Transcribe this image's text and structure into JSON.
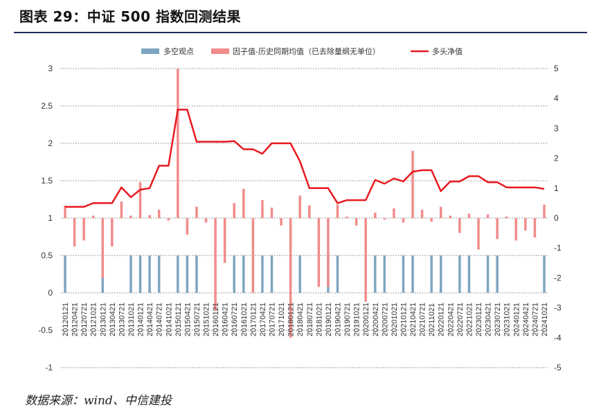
{
  "header": {
    "title": "图表 29：中证 500 指数回测结果"
  },
  "footer": {
    "source": "数据来源：wind、中信建投"
  },
  "chart_data": {
    "type": "bar",
    "title": "",
    "xlabel": "",
    "ylabel": "",
    "ylim_left": [
      -1,
      3
    ],
    "ylim_right": [
      -5,
      5
    ],
    "left_ticks": [
      "-1",
      "-0.5",
      "0",
      "0.5",
      "1",
      "1.5",
      "2",
      "2.5",
      "3"
    ],
    "right_ticks": [
      "-5",
      "-4",
      "-3",
      "-2",
      "-1",
      "0",
      "1",
      "2",
      "3",
      "4",
      "5"
    ],
    "grid": "horizontal dotted",
    "legend_position": "top-center",
    "colors": {
      "long_short_point": "#7ea6c0",
      "factor_minus_mean": "#f28b8b",
      "long_nav": "#e8181e"
    },
    "categories": [
      "20120121",
      "20120421",
      "20120721",
      "20121021",
      "20130121",
      "20130421",
      "20130721",
      "20131021",
      "20140121",
      "20140421",
      "20140721",
      "20141021",
      "20150121",
      "20150421",
      "20150721",
      "20151021",
      "20160121",
      "20160421",
      "20160721",
      "20161021",
      "20170121",
      "20170421",
      "20170721",
      "20171021",
      "20180121",
      "20180421",
      "20180721",
      "20181021",
      "20190121",
      "20190421",
      "20190721",
      "20191021",
      "20200121",
      "20200421",
      "20200721",
      "20201021",
      "20210121",
      "20210421",
      "20210721",
      "20211021",
      "20220121",
      "20220421",
      "20220721",
      "20221021",
      "20230121",
      "20230421",
      "20230721",
      "20231021",
      "20240121",
      "20240421",
      "20240721",
      "20241021"
    ],
    "series": [
      {
        "name": "多空观点",
        "axis": "left",
        "type": "bar",
        "values": [
          0.5,
          0,
          0,
          0,
          0.5,
          0,
          0,
          0.5,
          0.5,
          0.5,
          0.5,
          0,
          0.5,
          0.5,
          0.5,
          0,
          0,
          0,
          0.5,
          0.5,
          0,
          0.5,
          0.5,
          0,
          0.5,
          0.5,
          0,
          0,
          0.5,
          0.5,
          0,
          0,
          0.5,
          0.5,
          0.5,
          0,
          0.5,
          0.5,
          0,
          0.5,
          0.5,
          0,
          0.5,
          0.5,
          0,
          0.5,
          0.5,
          0,
          0,
          0,
          0,
          0.5
        ]
      },
      {
        "name": "因子值-历史同期均值（已去除量纲无单位）",
        "axis": "right",
        "type": "bar",
        "values": [
          0.42,
          -0.95,
          -0.75,
          0.08,
          -2.0,
          -0.95,
          0.55,
          0.08,
          1.2,
          0.1,
          0.28,
          -0.08,
          5.0,
          -0.55,
          0.38,
          -0.15,
          -3.1,
          -1.5,
          0.5,
          0.98,
          -2.5,
          0.6,
          0.35,
          -0.25,
          -4.0,
          0.75,
          0.42,
          -2.3,
          -2.3,
          0.45,
          0.05,
          -0.25,
          -2.8,
          0.18,
          -0.05,
          0.32,
          -0.15,
          2.25,
          0.28,
          -0.12,
          0.38,
          0.08,
          -0.5,
          0.15,
          -1.05,
          0.12,
          -0.7,
          0.05,
          -0.75,
          -0.42,
          -0.65,
          0.45
        ]
      },
      {
        "name": "多头净值",
        "axis": "left",
        "type": "line",
        "values": [
          1.15,
          1.15,
          1.15,
          1.2,
          1.2,
          1.2,
          1.41,
          1.28,
          1.38,
          1.4,
          1.7,
          1.7,
          2.45,
          2.45,
          2.02,
          2.02,
          2.02,
          2.02,
          2.03,
          1.92,
          1.92,
          1.86,
          2.0,
          2.0,
          2.0,
          1.76,
          1.4,
          1.4,
          1.4,
          1.2,
          1.24,
          1.24,
          1.24,
          1.51,
          1.46,
          1.53,
          1.49,
          1.62,
          1.64,
          1.64,
          1.36,
          1.49,
          1.49,
          1.56,
          1.56,
          1.48,
          1.48,
          1.41,
          1.41,
          1.41,
          1.41,
          1.39
        ]
      }
    ]
  }
}
